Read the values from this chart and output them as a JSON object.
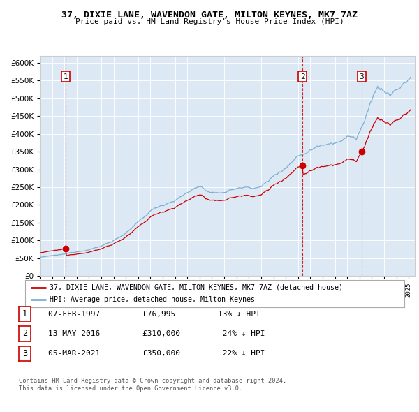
{
  "title": "37, DIXIE LANE, WAVENDON GATE, MILTON KEYNES, MK7 7AZ",
  "subtitle": "Price paid vs. HM Land Registry's House Price Index (HPI)",
  "bg_color": "#dce9f5",
  "hpi_color": "#7bafd4",
  "property_color": "#cc0000",
  "ylim": [
    0,
    620000
  ],
  "yticks": [
    0,
    50000,
    100000,
    150000,
    200000,
    250000,
    300000,
    350000,
    400000,
    450000,
    500000,
    550000,
    600000
  ],
  "sale1_date": 1997.09,
  "sale1_price": 76995,
  "sale2_date": 2016.37,
  "sale2_price": 310000,
  "sale3_date": 2021.17,
  "sale3_price": 350000,
  "legend_property": "37, DIXIE LANE, WAVENDON GATE, MILTON KEYNES, MK7 7AZ (detached house)",
  "legend_hpi": "HPI: Average price, detached house, Milton Keynes",
  "table_rows": [
    {
      "num": "1",
      "date": "07-FEB-1997",
      "price": "£76,995",
      "hpi": "13% ↓ HPI"
    },
    {
      "num": "2",
      "date": "13-MAY-2016",
      "price": "£310,000",
      "hpi": "24% ↓ HPI"
    },
    {
      "num": "3",
      "date": "05-MAR-2021",
      "price": "£350,000",
      "hpi": "22% ↓ HPI"
    }
  ],
  "footnote1": "Contains HM Land Registry data © Crown copyright and database right 2024.",
  "footnote2": "This data is licensed under the Open Government Licence v3.0."
}
